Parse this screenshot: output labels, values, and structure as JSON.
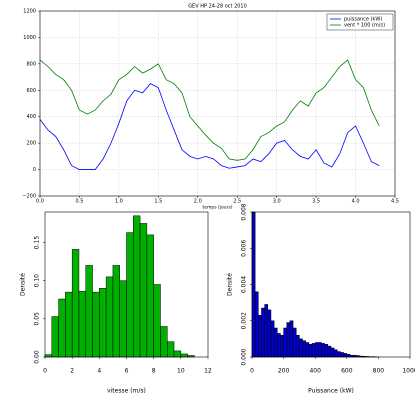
{
  "chart_data": [
    {
      "type": "line",
      "title": "GEV HP 24-28 oct 2010",
      "xlabel": "temps (jours)",
      "x": [
        0.0,
        0.1,
        0.2,
        0.3,
        0.4,
        0.5,
        0.6,
        0.7,
        0.8,
        0.9,
        1.0,
        1.1,
        1.2,
        1.3,
        1.4,
        1.5,
        1.6,
        1.7,
        1.8,
        1.9,
        2.0,
        2.1,
        2.2,
        2.3,
        2.4,
        2.5,
        2.6,
        2.7,
        2.8,
        2.9,
        3.0,
        3.1,
        3.2,
        3.3,
        3.4,
        3.5,
        3.6,
        3.7,
        3.8,
        3.9,
        4.0,
        4.1,
        4.2,
        4.3
      ],
      "series": [
        {
          "name": "puissance (kW)",
          "color": "#0000ff",
          "values": [
            380,
            300,
            250,
            150,
            30,
            0,
            0,
            0,
            80,
            200,
            350,
            520,
            600,
            580,
            650,
            620,
            450,
            300,
            150,
            100,
            80,
            100,
            80,
            30,
            10,
            20,
            30,
            80,
            60,
            120,
            200,
            220,
            150,
            100,
            80,
            150,
            50,
            20,
            120,
            280,
            330,
            200,
            60,
            30
          ]
        },
        {
          "name": "vent * 100 (m/s)",
          "color": "#007f00",
          "values": [
            830,
            780,
            720,
            680,
            600,
            450,
            420,
            450,
            520,
            570,
            680,
            720,
            780,
            730,
            760,
            800,
            680,
            650,
            580,
            400,
            330,
            260,
            200,
            160,
            80,
            70,
            80,
            150,
            250,
            280,
            330,
            360,
            450,
            520,
            480,
            580,
            620,
            700,
            780,
            830,
            680,
            620,
            450,
            330
          ]
        }
      ],
      "xlim": [
        0,
        4.5
      ],
      "xticks": [
        {
          "value": 0,
          "label": "0.0"
        },
        0.5,
        {
          "value": 1,
          "label": "1.0"
        },
        1.5,
        {
          "value": 2,
          "label": "2.0"
        },
        2.5,
        {
          "value": 3,
          "label": "3.0"
        },
        3.5,
        {
          "value": 4,
          "label": "4.0"
        },
        4.5
      ],
      "ylim": [
        -200,
        1200
      ],
      "yticks": [
        {
          "value": -200,
          "label": "−200"
        },
        0,
        200,
        400,
        600,
        800,
        1000,
        1200
      ],
      "grid": true,
      "legend": "upper right"
    },
    {
      "type": "histogram",
      "xlabel": "vitesse (m/s)",
      "ylabel": "Densité",
      "color": "#00b000",
      "bins": [
        0,
        0.5,
        1,
        1.5,
        2,
        2.5,
        3,
        3.5,
        4,
        4.5,
        5,
        5.5,
        6,
        6.5,
        7,
        7.5,
        8,
        8.5,
        9,
        9.5,
        10,
        10.5,
        11
      ],
      "values": [
        0.003,
        0.053,
        0.076,
        0.085,
        0.141,
        0.086,
        0.12,
        0.085,
        0.09,
        0.105,
        0.12,
        0.1,
        0.163,
        0.185,
        0.175,
        0.16,
        0.095,
        0.04,
        0.02,
        0.008,
        0.004,
        0.002
      ],
      "xlim": [
        0,
        12
      ],
      "xticks": [
        0,
        2,
        4,
        6,
        8,
        10,
        12
      ],
      "ylim": [
        0,
        0.19
      ],
      "yticks": [
        {
          "value": 0,
          "label": "0.00"
        },
        0.05,
        {
          "value": 0.1,
          "label": "0.10"
        },
        0.15
      ]
    },
    {
      "type": "histogram",
      "xlabel": "Puissance (kW)",
      "ylabel": "Densité",
      "color": "#0000c8",
      "bins": [
        0,
        20,
        40,
        60,
        80,
        100,
        120,
        140,
        160,
        180,
        200,
        220,
        240,
        260,
        280,
        300,
        320,
        340,
        360,
        380,
        400,
        420,
        440,
        460,
        480,
        500,
        520,
        540,
        560,
        580,
        600,
        620,
        640,
        660,
        680,
        700,
        720,
        740,
        760,
        780,
        800
      ],
      "values": [
        0.008,
        0.0036,
        0.0023,
        0.0027,
        0.0029,
        0.0026,
        0.002,
        0.0016,
        0.0013,
        0.0012,
        0.0016,
        0.0019,
        0.002,
        0.0016,
        0.0012,
        0.001,
        0.0009,
        0.0008,
        0.0007,
        0.00075,
        0.0008,
        0.0008,
        0.00075,
        0.0007,
        0.0006,
        0.0005,
        0.0004,
        0.0003,
        0.00025,
        0.0002,
        0.00015,
        0.0001,
        0.0001,
        8e-05,
        5e-05,
        4e-05,
        3e-05,
        2e-05,
        2e-05,
        1e-05
      ],
      "xlim": [
        0,
        1000
      ],
      "xticks": [
        0,
        200,
        400,
        600,
        800,
        1000
      ],
      "ylim": [
        0,
        0.008
      ],
      "yticks": [
        {
          "value": 0,
          "label": "0.000"
        },
        0.002,
        0.004,
        0.006,
        0.008
      ]
    }
  ]
}
